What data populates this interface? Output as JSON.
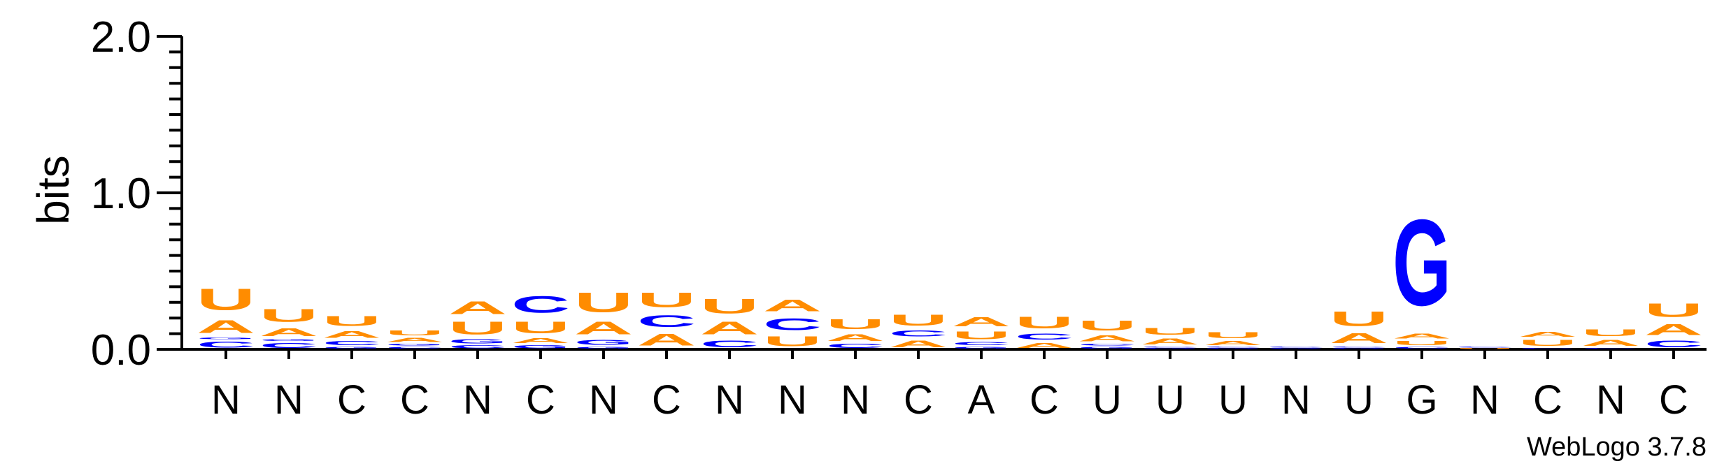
{
  "chart_data": {
    "type": "sequence-logo",
    "ylabel": "bits",
    "ylim": [
      0,
      2.0
    ],
    "yticks": [
      {
        "value": 0.0,
        "label": "0.0"
      },
      {
        "value": 1.0,
        "label": "1.0"
      },
      {
        "value": 2.0,
        "label": "2.0"
      }
    ],
    "colors": {
      "A": "#ff8c00",
      "U": "#ff8c00",
      "C": "#0000ff",
      "G": "#0000ff"
    },
    "positions": [
      {
        "label": "N",
        "stack": [
          [
            "C",
            0.06
          ],
          [
            "G",
            0.02
          ],
          [
            "A",
            0.13
          ],
          [
            "U",
            0.22
          ]
        ]
      },
      {
        "label": "N",
        "stack": [
          [
            "C",
            0.05
          ],
          [
            "G",
            0.02
          ],
          [
            "A",
            0.08
          ],
          [
            "U",
            0.13
          ]
        ]
      },
      {
        "label": "C",
        "stack": [
          [
            "G",
            0.02
          ],
          [
            "C",
            0.04
          ],
          [
            "A",
            0.07
          ],
          [
            "U",
            0.1
          ]
        ]
      },
      {
        "label": "C",
        "stack": [
          [
            "C",
            0.02
          ],
          [
            "G",
            0.02
          ],
          [
            "A",
            0.04
          ],
          [
            "U",
            0.05
          ]
        ]
      },
      {
        "label": "N",
        "stack": [
          [
            "C",
            0.03
          ],
          [
            "G",
            0.04
          ],
          [
            "U",
            0.13
          ],
          [
            "A",
            0.13
          ]
        ]
      },
      {
        "label": "C",
        "stack": [
          [
            "G",
            0.03
          ],
          [
            "A",
            0.05
          ],
          [
            "U",
            0.12
          ],
          [
            "C",
            0.17
          ]
        ]
      },
      {
        "label": "N",
        "stack": [
          [
            "G",
            0.02
          ],
          [
            "G",
            0.05
          ],
          [
            "A",
            0.13
          ],
          [
            "U",
            0.2
          ]
        ]
      },
      {
        "label": "C",
        "stack": [
          [
            "A",
            0.12
          ],
          [
            "C",
            0.12
          ],
          [
            "U",
            0.15
          ]
        ]
      },
      {
        "label": "N",
        "stack": [
          [
            "C",
            0.07
          ],
          [
            "A",
            0.13
          ],
          [
            "U",
            0.15
          ]
        ]
      },
      {
        "label": "N",
        "stack": [
          [
            "U",
            0.1
          ],
          [
            "C",
            0.12
          ],
          [
            "A",
            0.12
          ]
        ]
      },
      {
        "label": "N",
        "stack": [
          [
            "C",
            0.04
          ],
          [
            "A",
            0.07
          ],
          [
            "U",
            0.1
          ]
        ]
      },
      {
        "label": "C",
        "stack": [
          [
            "A",
            0.07
          ],
          [
            "C",
            0.06
          ],
          [
            "U",
            0.11
          ]
        ]
      },
      {
        "label": "A",
        "stack": [
          [
            "G",
            0.02
          ],
          [
            "C",
            0.03
          ],
          [
            "U",
            0.08
          ],
          [
            "A",
            0.09
          ]
        ]
      },
      {
        "label": "C",
        "stack": [
          [
            "A",
            0.05
          ],
          [
            "C",
            0.06
          ],
          [
            "U",
            0.12
          ]
        ]
      },
      {
        "label": "U",
        "stack": [
          [
            "G",
            0.02
          ],
          [
            "C",
            0.02
          ],
          [
            "A",
            0.06
          ],
          [
            "U",
            0.1
          ]
        ]
      },
      {
        "label": "U",
        "stack": [
          [
            "G",
            0.01
          ],
          [
            "C",
            0.01
          ],
          [
            "A",
            0.06
          ],
          [
            "U",
            0.07
          ]
        ]
      },
      {
        "label": "U",
        "stack": [
          [
            "G",
            0.01
          ],
          [
            "C",
            0.01
          ],
          [
            "A",
            0.04
          ],
          [
            "U",
            0.06
          ]
        ]
      },
      {
        "label": "N",
        "stack": [
          [
            "G",
            0.01
          ],
          [
            "C",
            0.01
          ]
        ]
      },
      {
        "label": "U",
        "stack": [
          [
            "G",
            0.01
          ],
          [
            "C",
            0.01
          ],
          [
            "A",
            0.1
          ],
          [
            "U",
            0.15
          ]
        ]
      },
      {
        "label": "G",
        "stack": [
          [
            "C",
            0.02
          ],
          [
            "U",
            0.04
          ],
          [
            "A",
            0.05
          ],
          [
            "G",
            0.88
          ]
        ]
      },
      {
        "label": "N",
        "stack": [
          [
            "U",
            0.01
          ],
          [
            "C",
            0.01
          ]
        ]
      },
      {
        "label": "C",
        "stack": [
          [
            "C",
            0.01
          ],
          [
            "U",
            0.06
          ],
          [
            "A",
            0.05
          ]
        ]
      },
      {
        "label": "N",
        "stack": [
          [
            "C",
            0.01
          ],
          [
            "A",
            0.06
          ],
          [
            "U",
            0.07
          ]
        ]
      },
      {
        "label": "C",
        "stack": [
          [
            "C",
            0.07
          ],
          [
            "A",
            0.11
          ],
          [
            "U",
            0.14
          ]
        ]
      }
    ]
  },
  "watermark": "WebLogo 3.7.8"
}
